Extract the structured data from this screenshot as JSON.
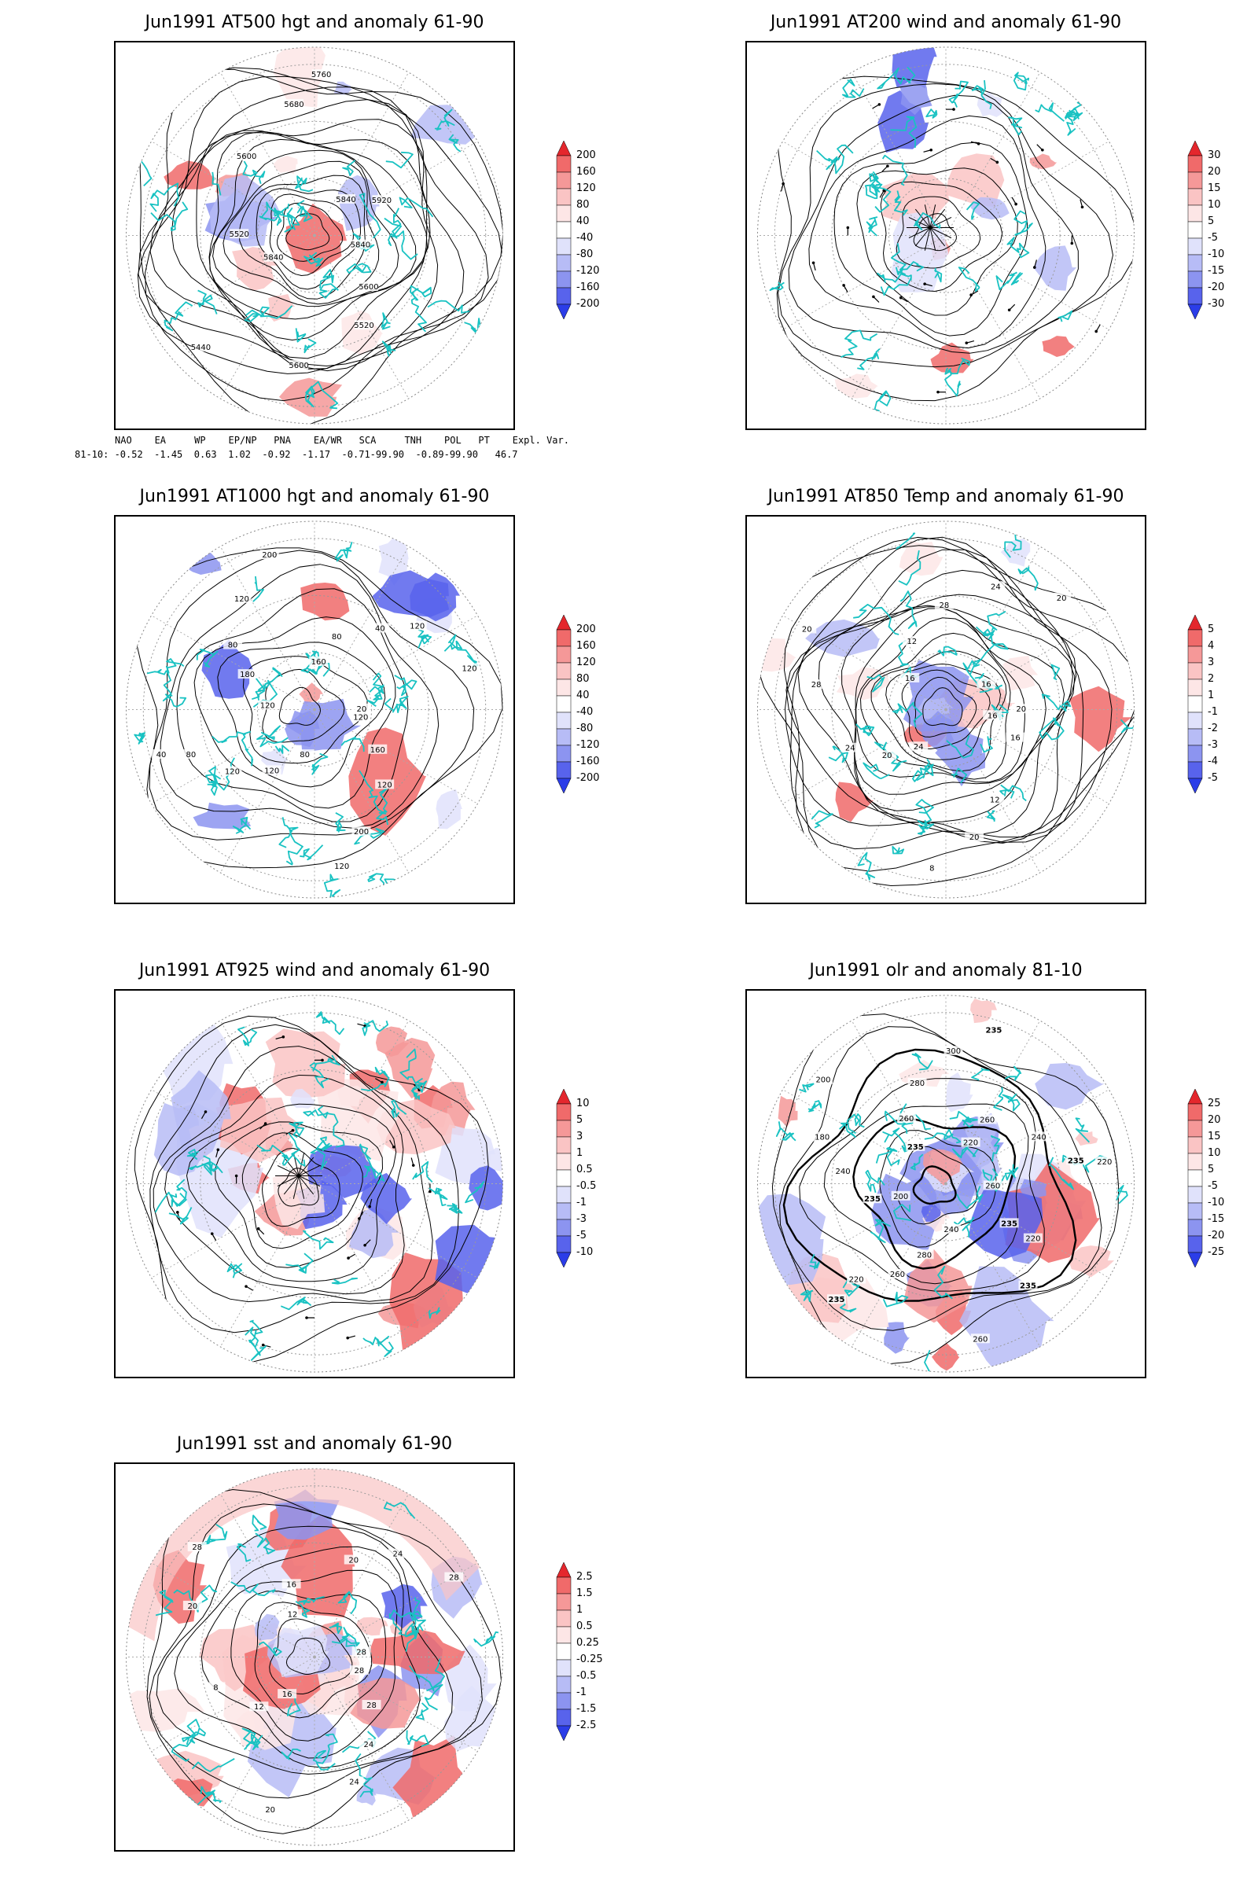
{
  "panels": [
    {
      "id": "p1",
      "title": "Jun1991 AT500 hgt and anomaly 61-90",
      "colorbar": [
        "200",
        "160",
        "120",
        "80",
        "40",
        "-40",
        "-80",
        "-120",
        "-160",
        "-200"
      ],
      "contour_labels": [
        "5840",
        "5600",
        "5520",
        "5600",
        "5440",
        "5840",
        "5520",
        "5600",
        "5680",
        "5760",
        "5840",
        "5920"
      ]
    },
    {
      "id": "p2",
      "title": "Jun1991 AT200 wind and anomaly 61-90",
      "colorbar": [
        "30",
        "20",
        "15",
        "10",
        "5",
        "-5",
        "-10",
        "-15",
        "-20",
        "-30"
      ],
      "contour_labels": []
    },
    {
      "id": "p3",
      "title": "Jun1991 AT1000 hgt and anomaly 61-90",
      "colorbar": [
        "200",
        "160",
        "120",
        "80",
        "40",
        "-40",
        "-80",
        "-120",
        "-160",
        "-200"
      ],
      "contour_labels": [
        "120",
        "160",
        "120",
        "200",
        "120",
        "80",
        "120",
        "120",
        "80",
        "40",
        "120",
        "180",
        "80",
        "120",
        "200",
        "160",
        "80",
        "40",
        "120",
        "120",
        "20"
      ]
    },
    {
      "id": "p4",
      "title": "Jun1991 AT850 Temp and anomaly 61-90",
      "colorbar": [
        "5",
        "4",
        "3",
        "2",
        "1",
        "-1",
        "-2",
        "-3",
        "-4",
        "-5"
      ],
      "contour_labels": [
        "16",
        "16",
        "12",
        "20",
        "8",
        "24",
        "20",
        "24",
        "28",
        "20",
        "16",
        "12",
        "28",
        "24",
        "20",
        "16",
        "20"
      ]
    },
    {
      "id": "p5",
      "title": "Jun1991 AT925 wind and anomaly 61-90",
      "colorbar": [
        "10",
        "5",
        "3",
        "1",
        "0.5",
        "-0.5",
        "-1",
        "-3",
        "-5",
        "-10"
      ],
      "contour_labels": []
    },
    {
      "id": "p6",
      "title": "Jun1991 olr and anomaly 81-10",
      "colorbar": [
        "25",
        "20",
        "15",
        "10",
        "5",
        "-5",
        "-10",
        "-15",
        "-20",
        "-25"
      ],
      "contour_labels": [
        "260",
        "235",
        "220",
        "235",
        "260",
        "240",
        "280",
        "260",
        "220",
        "235",
        "200",
        "235",
        "240",
        "180",
        "200",
        "235",
        "260",
        "280",
        "300",
        "235",
        "220",
        "260",
        "240",
        "235",
        "220"
      ]
    },
    {
      "id": "p7",
      "title": "Jun1991 sst and anomaly 61-90",
      "colorbar": [
        "2.5",
        "1.5",
        "1",
        "0.5",
        "0.25",
        "-0.25",
        "-0.5",
        "-1",
        "-1.5",
        "-2.5"
      ],
      "contour_labels": [
        "28",
        "28",
        "24",
        "24",
        "20",
        "16",
        "12",
        "8",
        "20",
        "28",
        "12",
        "16",
        "20",
        "24",
        "28",
        "28"
      ]
    }
  ],
  "index_table": {
    "header": "NAO    EA     WP    EP/NP   PNA    EA/WR   SCA     TNH    POL   PT    Expl. Var.",
    "row": "81-10: -0.52  -1.45  0.63  1.02  -0.92  -1.17  -0.71-99.90  -0.89-99.90   46.7"
  },
  "colors": {
    "coast": "#19c2c2",
    "red": "#e4272d",
    "blue": "#2b3de8",
    "contour": "#000000"
  }
}
